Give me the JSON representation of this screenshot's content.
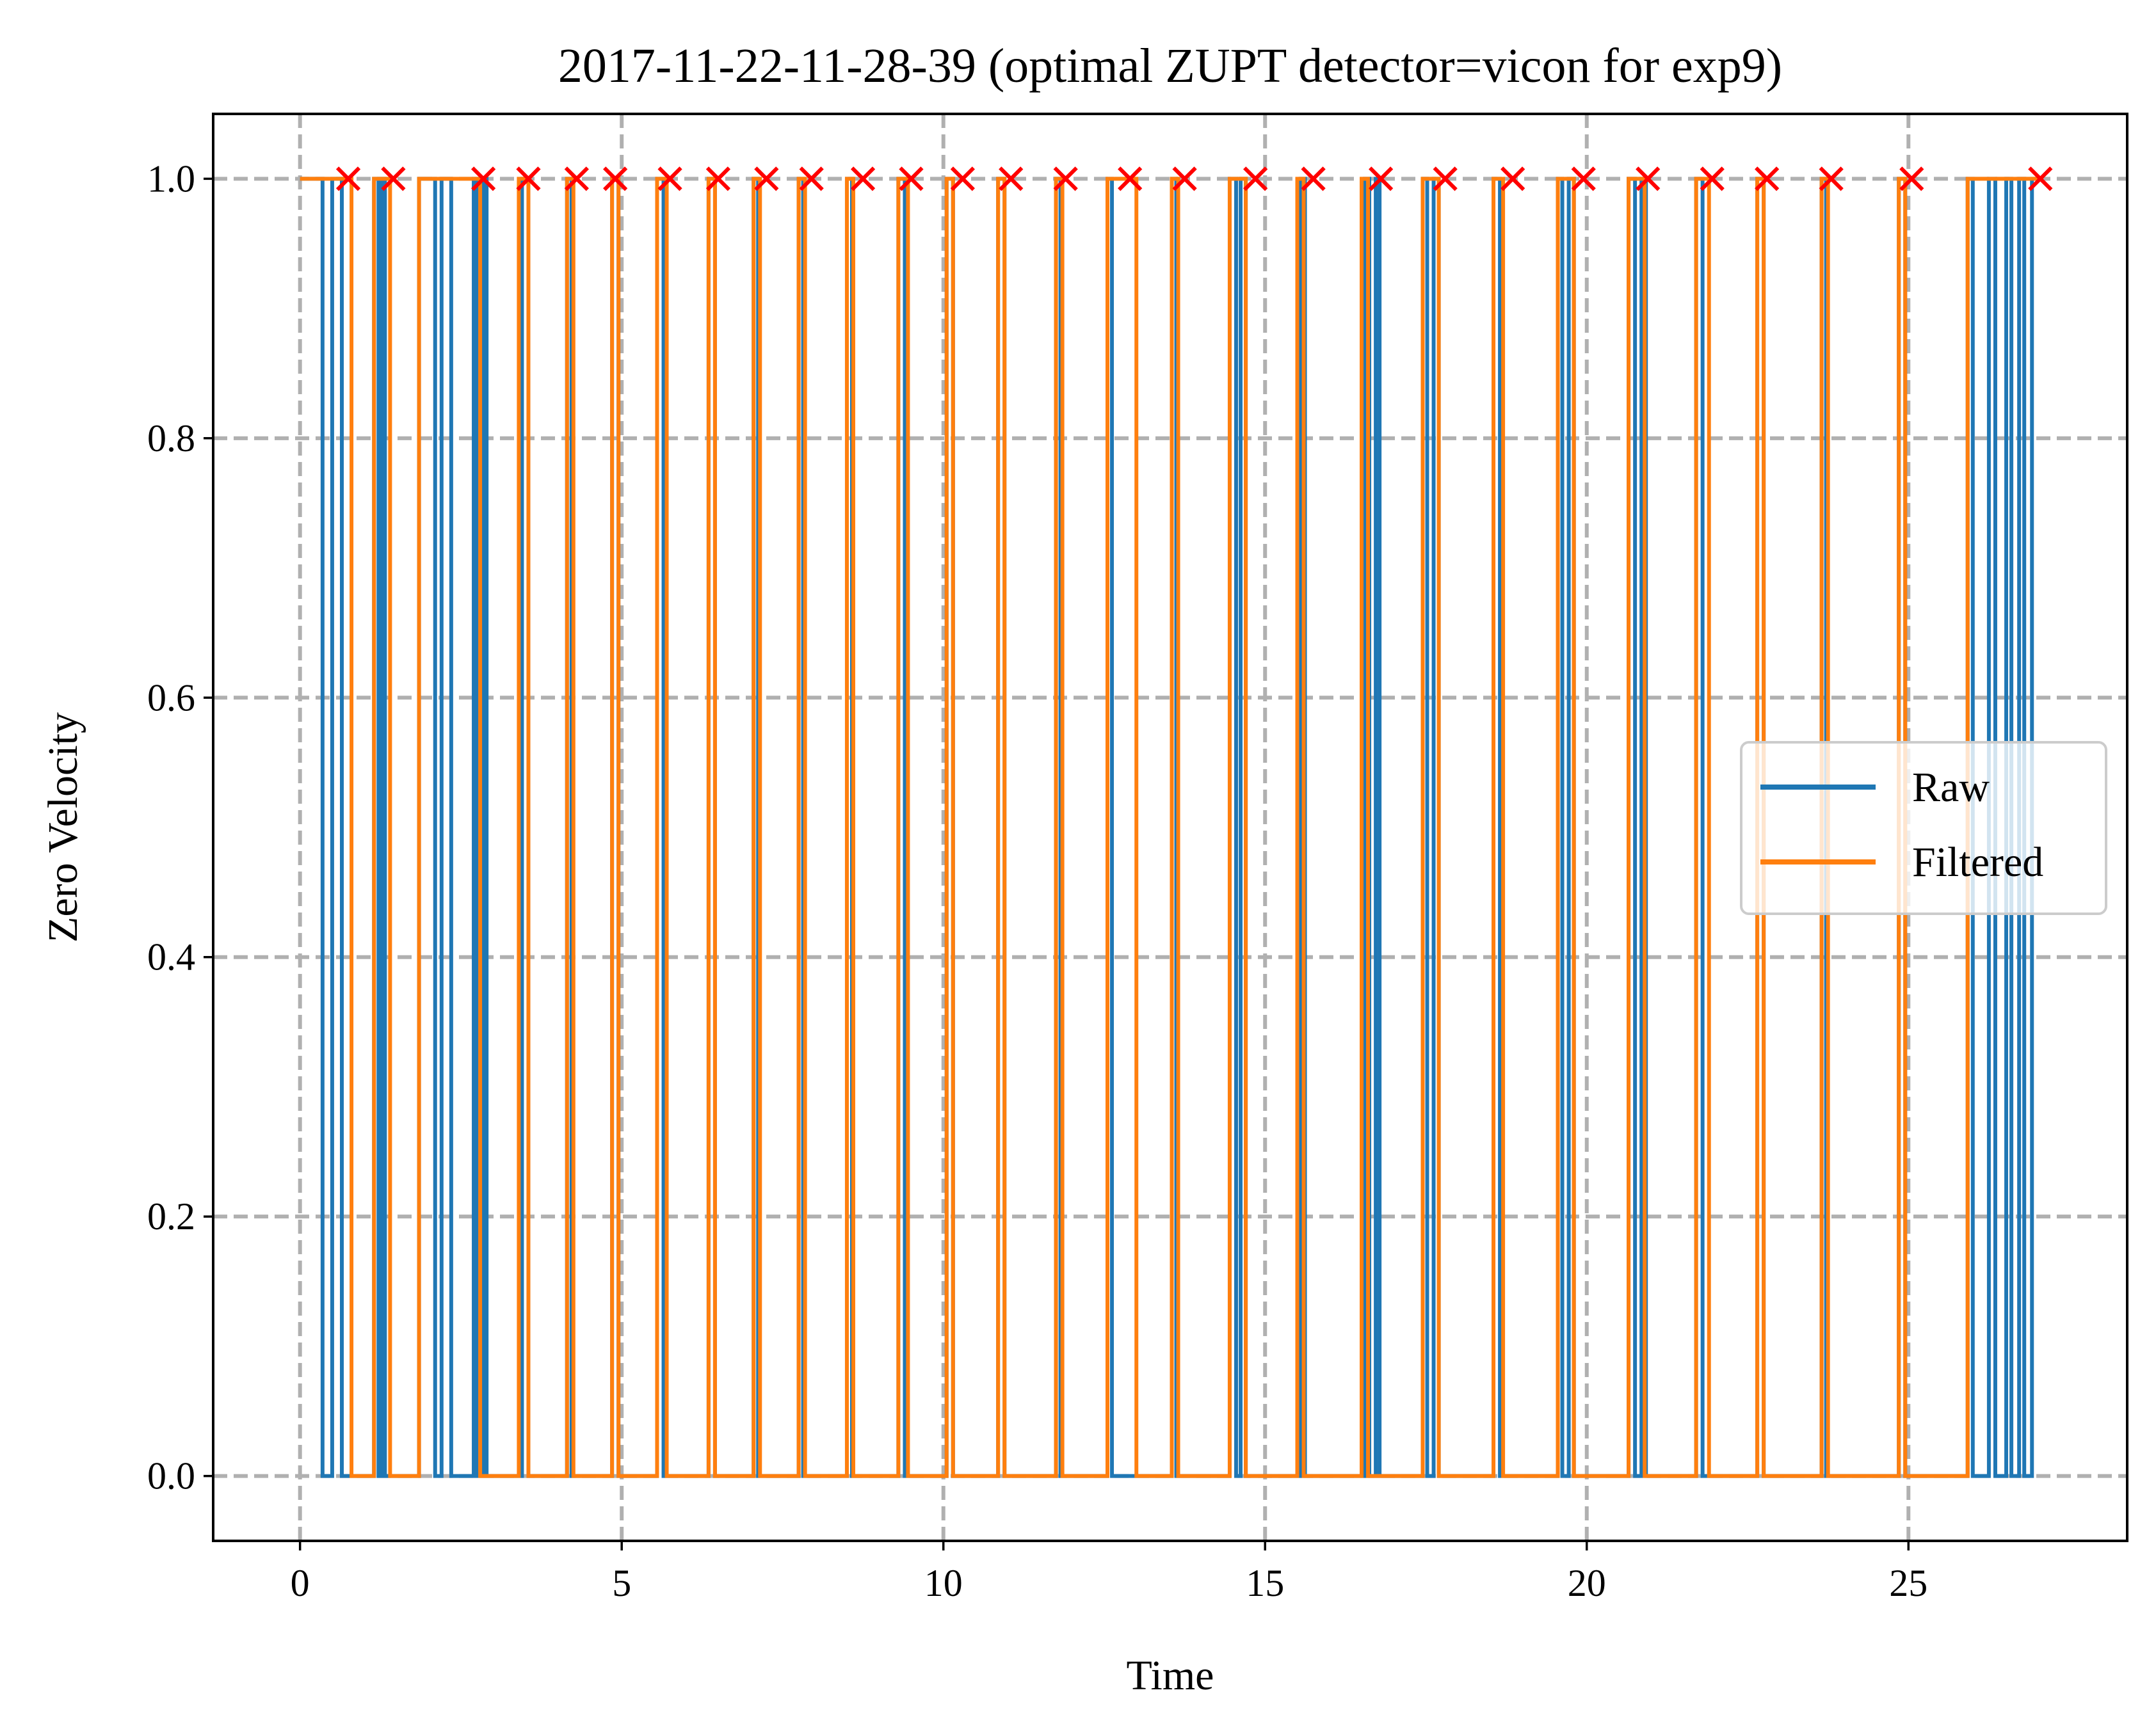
{
  "chart_data": {
    "type": "line",
    "title": "2017-11-22-11-28-39 (optimal ZUPT detector=vicon for exp9)",
    "xlabel": "Time",
    "ylabel": "Zero Velocity",
    "xlim": [
      -1.35,
      28.4
    ],
    "ylim": [
      -0.05,
      1.05
    ],
    "xticks": [
      0,
      5,
      10,
      15,
      20,
      25
    ],
    "xtick_labels": [
      "0",
      "5",
      "10",
      "15",
      "20",
      "25"
    ],
    "yticks": [
      0.0,
      0.2,
      0.4,
      0.6,
      0.8,
      1.0
    ],
    "ytick_labels": [
      "0.0",
      "0.2",
      "0.4",
      "0.6",
      "0.8",
      "1.0"
    ],
    "grid": true,
    "legend_position": "center-right",
    "series": [
      {
        "name": "Raw",
        "color": "#1f77b4",
        "style": "step",
        "high_intervals": [
          [
            0.0,
            0.35
          ],
          [
            0.5,
            0.65
          ],
          [
            1.15,
            1.22
          ],
          [
            1.27,
            1.32
          ],
          [
            1.85,
            2.1
          ],
          [
            2.2,
            2.35
          ],
          [
            2.7,
            2.75
          ],
          [
            2.85,
            2.9
          ],
          [
            3.45,
            3.55
          ],
          [
            4.15,
            4.22
          ],
          [
            4.85,
            4.95
          ],
          [
            5.55,
            5.65
          ],
          [
            6.35,
            6.45
          ],
          [
            7.05,
            7.12
          ],
          [
            7.75,
            7.82
          ],
          [
            8.5,
            8.58
          ],
          [
            9.3,
            9.4
          ],
          [
            10.05,
            10.15
          ],
          [
            10.85,
            10.95
          ],
          [
            11.75,
            11.82
          ],
          [
            12.55,
            12.62
          ],
          [
            13.55,
            13.62
          ],
          [
            14.45,
            14.55
          ],
          [
            14.62,
            14.7
          ],
          [
            15.55,
            15.62
          ],
          [
            16.55,
            16.62
          ],
          [
            16.72,
            16.78
          ],
          [
            17.45,
            17.52
          ],
          [
            17.62,
            17.7
          ],
          [
            18.55,
            18.65
          ],
          [
            19.55,
            19.62
          ],
          [
            19.72,
            19.8
          ],
          [
            20.65,
            20.75
          ],
          [
            20.85,
            20.92
          ],
          [
            21.7,
            21.8
          ],
          [
            22.65,
            22.75
          ],
          [
            23.65,
            23.72
          ],
          [
            24.85,
            24.95
          ],
          [
            25.92,
            26.0
          ],
          [
            26.25,
            26.35
          ],
          [
            26.52,
            26.6
          ],
          [
            26.72,
            26.8
          ],
          [
            26.92,
            27.0
          ]
        ]
      },
      {
        "name": "Filtered",
        "color": "#ff7f0e",
        "style": "step",
        "high_intervals": [
          [
            0.0,
            0.8
          ],
          [
            1.15,
            1.4
          ],
          [
            1.85,
            2.8
          ],
          [
            3.4,
            3.55
          ],
          [
            4.15,
            4.25
          ],
          [
            4.85,
            4.95
          ],
          [
            5.55,
            5.7
          ],
          [
            6.35,
            6.45
          ],
          [
            7.05,
            7.15
          ],
          [
            7.75,
            7.85
          ],
          [
            8.5,
            8.6
          ],
          [
            9.3,
            9.45
          ],
          [
            10.05,
            10.15
          ],
          [
            10.85,
            10.95
          ],
          [
            11.75,
            11.85
          ],
          [
            12.55,
            13.0
          ],
          [
            13.55,
            13.65
          ],
          [
            14.45,
            14.7
          ],
          [
            15.5,
            15.6
          ],
          [
            16.5,
            16.6
          ],
          [
            17.45,
            17.7
          ],
          [
            18.55,
            18.7
          ],
          [
            19.55,
            19.8
          ],
          [
            20.65,
            20.9
          ],
          [
            21.7,
            21.9
          ],
          [
            22.65,
            22.75
          ],
          [
            23.65,
            23.75
          ],
          [
            24.85,
            24.95
          ],
          [
            25.92,
            27.05
          ]
        ]
      },
      {
        "name": "",
        "color": "#ff0000",
        "style": "x-markers",
        "x": [
          0.75,
          1.45,
          2.85,
          3.55,
          4.3,
          4.9,
          5.75,
          6.5,
          7.25,
          7.95,
          8.75,
          9.5,
          10.3,
          11.05,
          11.9,
          12.9,
          13.75,
          14.85,
          15.75,
          16.8,
          17.8,
          18.85,
          19.95,
          20.95,
          21.95,
          22.8,
          23.8,
          25.05,
          27.05
        ],
        "y": [
          1,
          1,
          1,
          1,
          1,
          1,
          1,
          1,
          1,
          1,
          1,
          1,
          1,
          1,
          1,
          1,
          1,
          1,
          1,
          1,
          1,
          1,
          1,
          1,
          1,
          1,
          1,
          1,
          1
        ]
      }
    ],
    "legend": [
      "Raw",
      "Filtered"
    ]
  }
}
